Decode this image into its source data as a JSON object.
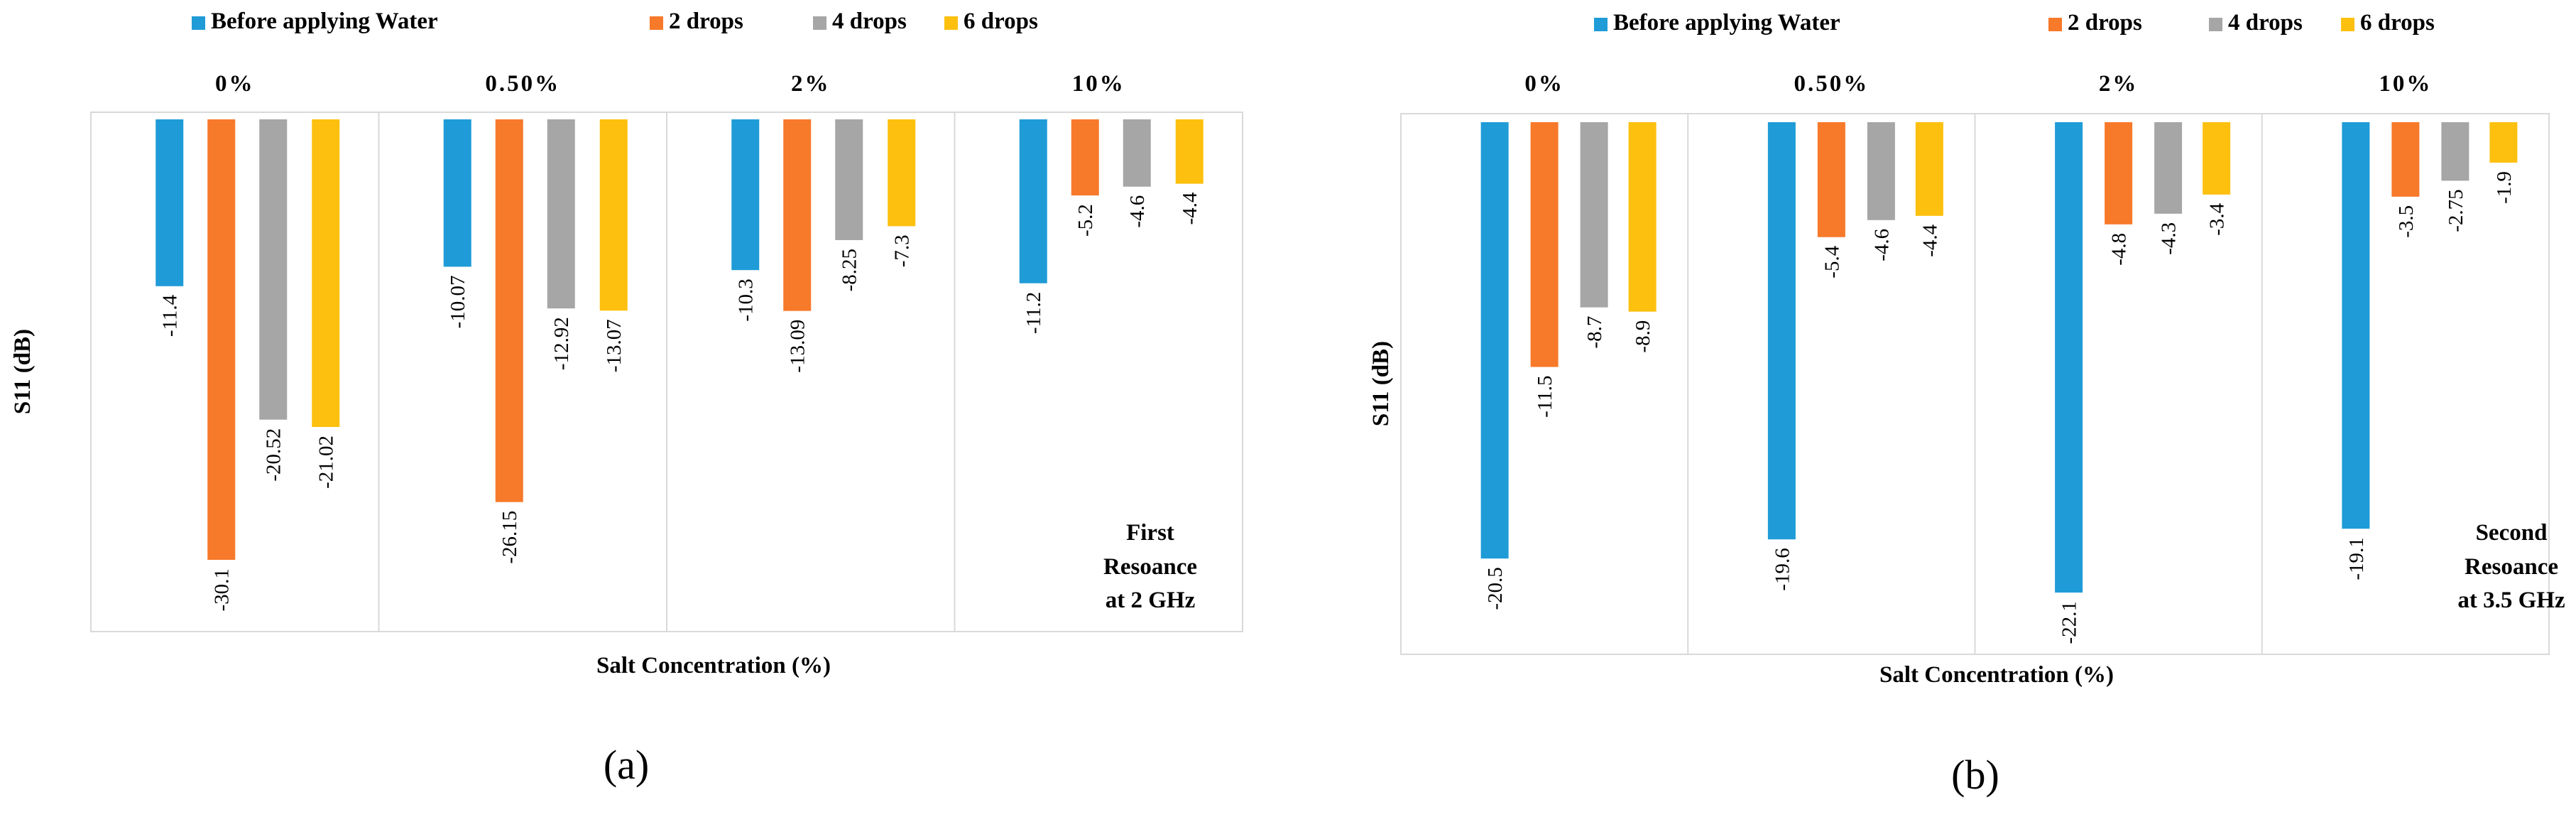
{
  "legend": [
    {
      "label": "Before applying Water",
      "color": "#1f9bd7"
    },
    {
      "label": "2 drops",
      "color": "#f7792a"
    },
    {
      "label": "4 drops",
      "color": "#a6a6a6"
    },
    {
      "label": "6 drops",
      "color": "#fdc00f"
    }
  ],
  "chart_data": [
    {
      "type": "bar",
      "panel_label": "(a)",
      "ylabel": "S11 (dB)",
      "xlabel": "Salt Concentration (%)",
      "annotation": [
        "First",
        "Resoance",
        "at 2 GHz"
      ],
      "categories": [
        "0%",
        "0.50%",
        "2%",
        "10%"
      ],
      "ylim": [
        -35,
        0
      ],
      "series": [
        {
          "name": "Before applying Water",
          "values": [
            -11.4,
            -10.07,
            -10.3,
            -11.2
          ],
          "labels": [
            "-11.4",
            "-10.07",
            "-10.3",
            "-11.2"
          ]
        },
        {
          "name": "2 drops",
          "values": [
            -30.1,
            -26.15,
            -13.09,
            -5.2
          ],
          "labels": [
            "-30.1",
            "-26.15",
            "-13.09",
            "-5.2"
          ]
        },
        {
          "name": "4 drops",
          "values": [
            -20.52,
            -12.92,
            -8.25,
            -4.6
          ],
          "labels": [
            "-20.52",
            "-12.92",
            "-8.25",
            "-4.6"
          ]
        },
        {
          "name": "6 drops",
          "values": [
            -21.02,
            -13.07,
            -7.3,
            -4.4
          ],
          "labels": [
            "-21.02",
            "-13.07",
            "-7.3",
            "-4.4"
          ]
        }
      ]
    },
    {
      "type": "bar",
      "panel_label": "(b)",
      "ylabel": "S11 (dB)",
      "xlabel": "Salt Concentration (%)",
      "annotation": [
        "Second",
        "Resoance",
        "at 3.5 GHz"
      ],
      "categories": [
        "0%",
        "0.50%",
        "2%",
        "10%"
      ],
      "ylim": [
        -25,
        0
      ],
      "series": [
        {
          "name": "Before applying Water",
          "values": [
            -20.5,
            -19.6,
            -22.1,
            -19.1
          ],
          "labels": [
            "-20.5",
            "-19.6",
            "-22.1",
            "-19.1"
          ]
        },
        {
          "name": "2 drops",
          "values": [
            -11.5,
            -5.4,
            -4.8,
            -3.5
          ],
          "labels": [
            "-11.5",
            "-5.4",
            "-4.8",
            "-3.5"
          ]
        },
        {
          "name": "4 drops",
          "values": [
            -8.7,
            -4.6,
            -4.3,
            -2.75
          ],
          "labels": [
            "-8.7",
            "-4.6",
            "-4.3",
            "-2.75"
          ]
        },
        {
          "name": "6 drops",
          "values": [
            -8.9,
            -4.4,
            -3.4,
            -1.9
          ],
          "labels": [
            "-8.9",
            "-4.4",
            "-3.4",
            "-1.9"
          ]
        }
      ]
    }
  ]
}
